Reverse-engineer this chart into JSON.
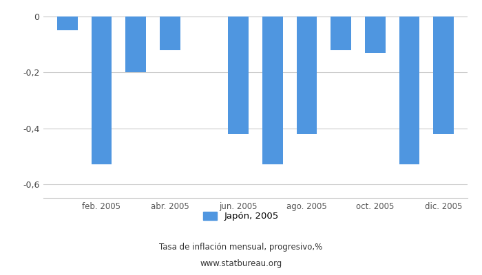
{
  "values": [
    -0.05,
    -0.53,
    -0.2,
    -0.12,
    0.0,
    -0.42,
    -0.53,
    -0.42,
    -0.12,
    -0.13,
    -0.53,
    -0.42
  ],
  "bar_color": "#4f96e0",
  "xtick_positions": [
    1,
    3,
    5,
    7,
    9,
    11
  ],
  "xtick_labels": [
    "feb. 2005",
    "abr. 2005",
    "jun. 2005",
    "ago. 2005",
    "oct. 2005",
    "dic. 2005"
  ],
  "ylim": [
    -0.65,
    0.02
  ],
  "yticks": [
    0,
    -0.2,
    -0.4,
    -0.6
  ],
  "ytick_labels": [
    "0",
    "-0,2",
    "-0,4",
    "-0,6"
  ],
  "legend_label": "Japón, 2005",
  "subtitle1": "Tasa de inflación mensual, progresivo,%",
  "subtitle2": "www.statbureau.org",
  "background_color": "#ffffff",
  "grid_color": "#cccccc"
}
